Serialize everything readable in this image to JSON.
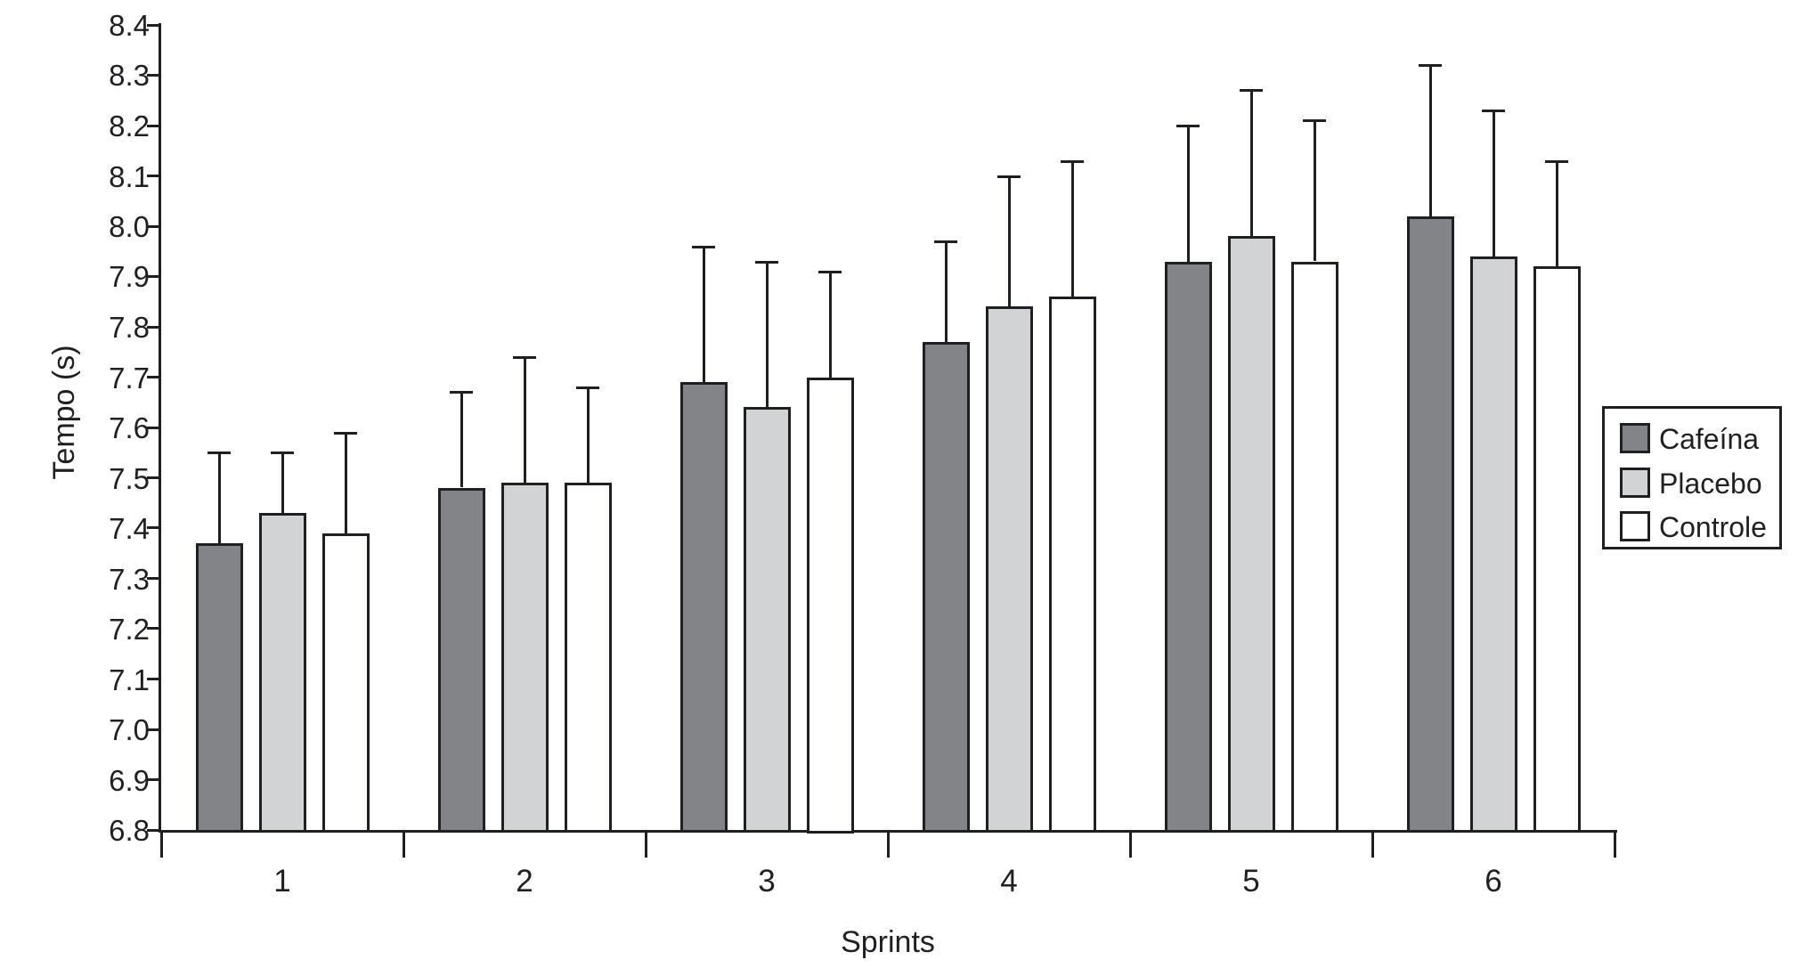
{
  "chart_data": {
    "type": "bar",
    "xlabel": "Sprints",
    "ylabel": "Tempo (s)",
    "categories": [
      "1",
      "2",
      "3",
      "4",
      "5",
      "6"
    ],
    "series": [
      {
        "name": "Cafeína",
        "color": "#828488",
        "values": [
          7.37,
          7.48,
          7.69,
          7.77,
          7.93,
          8.02
        ],
        "error_tops": [
          7.55,
          7.67,
          7.96,
          7.97,
          8.2,
          8.32
        ]
      },
      {
        "name": "Placebo",
        "color": "#d2d3d5",
        "values": [
          7.43,
          7.49,
          7.64,
          7.84,
          7.98,
          7.94
        ],
        "error_tops": [
          7.55,
          7.74,
          7.93,
          8.1,
          8.27,
          8.23
        ]
      },
      {
        "name": "Controle",
        "color": "#ffffff",
        "values": [
          7.39,
          7.49,
          7.7,
          7.86,
          7.93,
          7.92
        ],
        "error_tops": [
          7.59,
          7.68,
          7.91,
          8.13,
          8.21,
          8.13
        ]
      }
    ],
    "ylim": [
      6.8,
      8.4
    ],
    "ytick_step": 0.1,
    "grid": false,
    "legend_position": "right",
    "axis_color": "#1f2023",
    "background_color": "#ffffff"
  }
}
